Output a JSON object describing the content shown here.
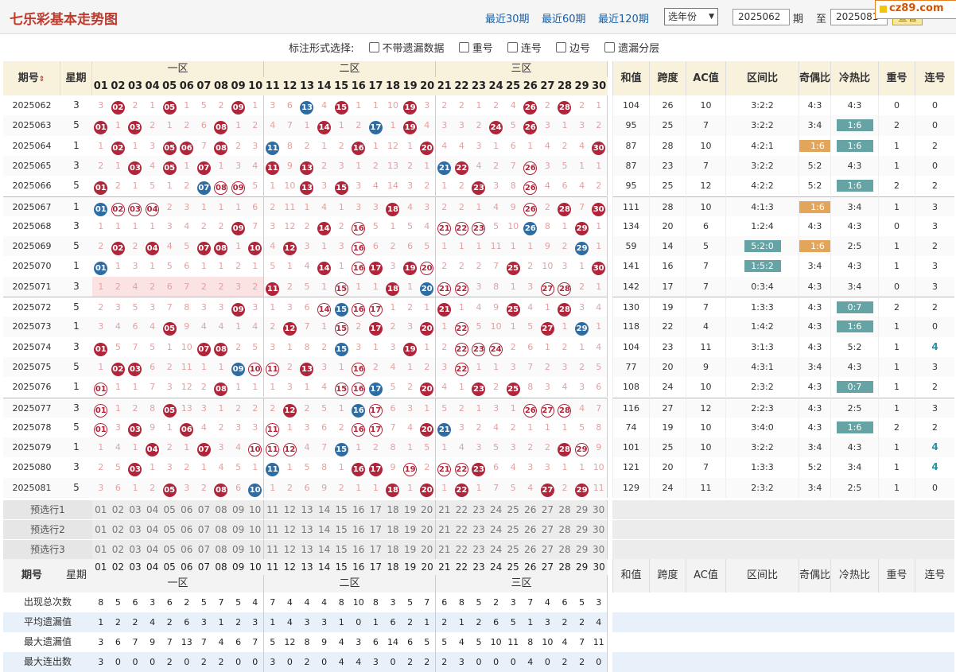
{
  "header": {
    "title": "七乐彩基本走势图",
    "links": [
      "最近30期",
      "最近60期",
      "最近120期"
    ],
    "year_select": "选年份",
    "period_from": "2025062",
    "period_label": "期",
    "to_label": "至",
    "period_to": "2025081",
    "period_label2": "期",
    "view_button": "查看"
  },
  "badge": "cz89.com",
  "options": {
    "label": "标注形式选择:",
    "items": [
      "不带遗漏数据",
      "重号",
      "连号",
      "边号",
      "遗漏分层"
    ]
  },
  "table": {
    "hdr": {
      "period": "期号",
      "sort_icon": "sort-arrows",
      "week": "星期",
      "zones": [
        "一区",
        "二区",
        "三区"
      ],
      "sum": "和值",
      "span": "跨度",
      "ac": "AC值",
      "zone_ratio": "区间比",
      "odd_even": "奇偶比",
      "hot_cold": "冷热比",
      "repeat": "重号",
      "consec": "连号"
    },
    "nums": [
      "01",
      "02",
      "03",
      "04",
      "05",
      "06",
      "07",
      "08",
      "09",
      "10",
      "11",
      "12",
      "13",
      "14",
      "15",
      "16",
      "17",
      "18",
      "19",
      "20",
      "21",
      "22",
      "23",
      "24",
      "25",
      "26",
      "27",
      "28",
      "29",
      "30"
    ],
    "rows": [
      {
        "p": "2025062",
        "w": "3",
        "c": [
          "3",
          "02b",
          "2",
          "1",
          "05b",
          "1",
          "5",
          "2",
          "09b",
          "1",
          "3",
          "6",
          "13s",
          "4",
          "15b",
          "1",
          "1",
          "10",
          "19b",
          "3",
          "2",
          "2",
          "1",
          "2",
          "4",
          "26b",
          "2",
          "28b",
          "2",
          "1"
        ],
        "sum": "104",
        "span": "26",
        "ac": "10",
        "zr": "3:2:2",
        "oe": "4:3",
        "oe_hl": "",
        "hc": "4:3",
        "hc_hl": "",
        "rep": "0",
        "con": "0",
        "con_hl": false
      },
      {
        "p": "2025063",
        "w": "5",
        "c": [
          "01b",
          "1",
          "03b",
          "2",
          "1",
          "2",
          "6",
          "08b",
          "1",
          "2",
          "4",
          "7",
          "1",
          "14b",
          "1",
          "2",
          "17s",
          "1",
          "19b",
          "4",
          "3",
          "3",
          "2",
          "24b",
          "5",
          "26b",
          "3",
          "1",
          "3",
          "2"
        ],
        "sum": "95",
        "span": "25",
        "ac": "7",
        "zr": "3:2:2",
        "oe": "3:4",
        "oe_hl": "",
        "hc": "1:6",
        "hc_hl": "t",
        "rep": "2",
        "con": "0",
        "con_hl": false
      },
      {
        "p": "2025064",
        "w": "1",
        "c": [
          "1",
          "02b",
          "1",
          "3",
          "05b",
          "06b",
          "7",
          "08b",
          "2",
          "3",
          "11s",
          "8",
          "2",
          "1",
          "2",
          "16b",
          "1",
          "12",
          "1",
          "20b",
          "4",
          "4",
          "3",
          "1",
          "6",
          "1",
          "4",
          "2",
          "4",
          "30b"
        ],
        "sum": "87",
        "span": "28",
        "ac": "10",
        "zr": "4:2:1",
        "oe": "1:6",
        "oe_hl": "g",
        "hc": "1:6",
        "hc_hl": "t",
        "rep": "1",
        "con": "2",
        "con_hl": false
      },
      {
        "p": "2025065",
        "w": "3",
        "c": [
          "2",
          "1",
          "03b",
          "4",
          "05b",
          "1",
          "07b",
          "1",
          "3",
          "4",
          "11b",
          "9",
          "13b",
          "2",
          "3",
          "1",
          "2",
          "13",
          "2",
          "1",
          "21s",
          "22b",
          "4",
          "2",
          "7",
          "26o",
          "3",
          "5",
          "1",
          "1"
        ],
        "sum": "87",
        "span": "23",
        "ac": "7",
        "zr": "3:2:2",
        "oe": "5:2",
        "oe_hl": "",
        "hc": "4:3",
        "hc_hl": "",
        "rep": "1",
        "con": "0",
        "con_hl": false
      },
      {
        "p": "2025066",
        "w": "5",
        "c": [
          "01b",
          "2",
          "1",
          "5",
          "1",
          "2",
          "07s",
          "08o",
          "09o",
          "5",
          "1",
          "10",
          "13b",
          "3",
          "15b",
          "3",
          "4",
          "14",
          "3",
          "2",
          "1",
          "2",
          "23b",
          "3",
          "8",
          "26o",
          "4",
          "6",
          "4",
          "2"
        ],
        "sum": "95",
        "span": "25",
        "ac": "12",
        "zr": "4:2:2",
        "oe": "5:2",
        "oe_hl": "",
        "hc": "1:6",
        "hc_hl": "t",
        "rep": "2",
        "con": "2",
        "con_hl": false
      },
      {
        "p": "2025067",
        "w": "1",
        "c": [
          "01s",
          "02o",
          "03o",
          "04o",
          "2",
          "3",
          "1",
          "1",
          "1",
          "6",
          "2",
          "11",
          "1",
          "4",
          "1",
          "3",
          "3",
          "18b",
          "4",
          "3",
          "2",
          "2",
          "1",
          "4",
          "9",
          "26o",
          "2",
          "28b",
          "7",
          "30b"
        ],
        "sum": "111",
        "span": "28",
        "ac": "10",
        "zr": "4:1:3",
        "oe": "1:6",
        "oe_hl": "g",
        "hc": "3:4",
        "hc_hl": "",
        "rep": "1",
        "con": "3",
        "con_hl": false
      },
      {
        "p": "2025068",
        "w": "3",
        "c": [
          "1",
          "1",
          "1",
          "1",
          "3",
          "4",
          "2",
          "2",
          "09b",
          "7",
          "3",
          "12",
          "2",
          "14b",
          "2",
          "16o",
          "5",
          "1",
          "5",
          "4",
          "21o",
          "22o",
          "23o",
          "5",
          "10",
          "26s",
          "8",
          "1",
          "29b",
          "1"
        ],
        "sum": "134",
        "span": "20",
        "ac": "6",
        "zr": "1:2:4",
        "oe": "4:3",
        "oe_hl": "",
        "hc": "4:3",
        "hc_hl": "",
        "rep": "0",
        "con": "3",
        "con_hl": false
      },
      {
        "p": "2025069",
        "w": "5",
        "c": [
          "2",
          "02b",
          "2",
          "04b",
          "4",
          "5",
          "07b",
          "08b",
          "1",
          "10b",
          "4",
          "12b",
          "3",
          "1",
          "3",
          "16o",
          "6",
          "2",
          "6",
          "5",
          "1",
          "1",
          "1",
          "11",
          "1",
          "1",
          "9",
          "2",
          "29s",
          "1"
        ],
        "sum": "59",
        "span": "14",
        "ac": "5",
        "zr": "5:2:0",
        "oe": "1:6",
        "oe_hl": "g",
        "hc": "2:5",
        "hc_hl": "",
        "rep": "1",
        "con": "2",
        "con_hl": false,
        "zr_hl": "t"
      },
      {
        "p": "2025070",
        "w": "1",
        "c": [
          "01s",
          "1",
          "3",
          "1",
          "5",
          "6",
          "1",
          "1",
          "2",
          "1",
          "5",
          "1",
          "4",
          "14b",
          "1",
          "16o",
          "17b",
          "3",
          "19b",
          "20o",
          "2",
          "2",
          "2",
          "7",
          "25b",
          "2",
          "10",
          "3",
          "1",
          "30b"
        ],
        "sum": "141",
        "span": "16",
        "ac": "7",
        "zr": "1:5:2",
        "oe": "3:4",
        "oe_hl": "",
        "hc": "4:3",
        "hc_hl": "",
        "rep": "1",
        "con": "3",
        "con_hl": false,
        "zr_hl": "t"
      },
      {
        "p": "2025071",
        "w": "3",
        "c": [
          "1",
          "2",
          "4",
          "2",
          "6",
          "7",
          "2",
          "2",
          "3",
          "2",
          "11b",
          "2",
          "5",
          "1",
          "15o",
          "1",
          "1",
          "18b",
          "1",
          "20s",
          "21o",
          "22o",
          "3",
          "8",
          "1",
          "3",
          "27o",
          "28o",
          "2",
          "1"
        ],
        "sum": "142",
        "span": "17",
        "ac": "7",
        "zr": "0:3:4",
        "oe": "4:3",
        "oe_hl": "",
        "hc": "3:4",
        "hc_hl": "",
        "rep": "0",
        "con": "3",
        "con_hl": false,
        "pink": true
      },
      {
        "p": "2025072",
        "w": "5",
        "c": [
          "2",
          "3",
          "5",
          "3",
          "7",
          "8",
          "3",
          "3",
          "09b",
          "3",
          "1",
          "3",
          "6",
          "14o",
          "15s",
          "16o",
          "17o",
          "1",
          "2",
          "1",
          "21b",
          "1",
          "4",
          "9",
          "25b",
          "4",
          "1",
          "28b",
          "3",
          "4"
        ],
        "sum": "130",
        "span": "19",
        "ac": "7",
        "zr": "1:3:3",
        "oe": "4:3",
        "oe_hl": "",
        "hc": "0:7",
        "hc_hl": "t",
        "rep": "2",
        "con": "2",
        "con_hl": false
      },
      {
        "p": "2025073",
        "w": "1",
        "c": [
          "3",
          "4",
          "6",
          "4",
          "05b",
          "9",
          "4",
          "4",
          "1",
          "4",
          "2",
          "12b",
          "7",
          "1",
          "15o",
          "2",
          "17b",
          "2",
          "3",
          "20b",
          "1",
          "22o",
          "5",
          "10",
          "1",
          "5",
          "27b",
          "1",
          "29s",
          "1"
        ],
        "sum": "118",
        "span": "22",
        "ac": "4",
        "zr": "1:4:2",
        "oe": "4:3",
        "oe_hl": "",
        "hc": "1:6",
        "hc_hl": "t",
        "rep": "1",
        "con": "0",
        "con_hl": false
      },
      {
        "p": "2025074",
        "w": "3",
        "c": [
          "01b",
          "5",
          "7",
          "5",
          "1",
          "10",
          "07b",
          "08b",
          "2",
          "5",
          "3",
          "1",
          "8",
          "2",
          "15s",
          "3",
          "1",
          "3",
          "19b",
          "1",
          "2",
          "22o",
          "23o",
          "24o",
          "2",
          "6",
          "1",
          "2",
          "1",
          "4"
        ],
        "sum": "104",
        "span": "23",
        "ac": "11",
        "zr": "3:1:3",
        "oe": "4:3",
        "oe_hl": "",
        "hc": "5:2",
        "hc_hl": "",
        "rep": "1",
        "con": "4",
        "con_hl": true
      },
      {
        "p": "2025075",
        "w": "5",
        "c": [
          "1",
          "02b",
          "03b",
          "6",
          "2",
          "11",
          "1",
          "1",
          "09s",
          "10o",
          "11o",
          "2",
          "13b",
          "3",
          "1",
          "16o",
          "2",
          "4",
          "1",
          "2",
          "3",
          "22o",
          "1",
          "1",
          "3",
          "7",
          "2",
          "3",
          "2",
          "5"
        ],
        "sum": "77",
        "span": "20",
        "ac": "9",
        "zr": "4:3:1",
        "oe": "3:4",
        "oe_hl": "",
        "hc": "4:3",
        "hc_hl": "",
        "rep": "1",
        "con": "3",
        "con_hl": false
      },
      {
        "p": "2025076",
        "w": "1",
        "c": [
          "01o",
          "1",
          "1",
          "7",
          "3",
          "12",
          "2",
          "08b",
          "1",
          "1",
          "1",
          "3",
          "1",
          "4",
          "15o",
          "16o",
          "17s",
          "5",
          "2",
          "20b",
          "4",
          "1",
          "23b",
          "2",
          "25b",
          "8",
          "3",
          "4",
          "3",
          "6"
        ],
        "sum": "108",
        "span": "24",
        "ac": "10",
        "zr": "2:3:2",
        "oe": "4:3",
        "oe_hl": "",
        "hc": "0:7",
        "hc_hl": "t",
        "rep": "1",
        "con": "2",
        "con_hl": false
      },
      {
        "p": "2025077",
        "w": "3",
        "c": [
          "01o",
          "1",
          "2",
          "8",
          "05b",
          "13",
          "3",
          "1",
          "2",
          "2",
          "2",
          "12b",
          "2",
          "5",
          "1",
          "16s",
          "17o",
          "6",
          "3",
          "1",
          "5",
          "2",
          "1",
          "3",
          "1",
          "26o",
          "27o",
          "28o",
          "4",
          "7"
        ],
        "sum": "116",
        "span": "27",
        "ac": "12",
        "zr": "2:2:3",
        "oe": "4:3",
        "oe_hl": "",
        "hc": "2:5",
        "hc_hl": "",
        "rep": "1",
        "con": "3",
        "con_hl": false
      },
      {
        "p": "2025078",
        "w": "5",
        "c": [
          "01o",
          "3",
          "03b",
          "9",
          "1",
          "06b",
          "4",
          "2",
          "3",
          "3",
          "11o",
          "1",
          "3",
          "6",
          "2",
          "16o",
          "17o",
          "7",
          "4",
          "20b",
          "21s",
          "3",
          "2",
          "4",
          "2",
          "1",
          "1",
          "1",
          "5",
          "8"
        ],
        "sum": "74",
        "span": "19",
        "ac": "10",
        "zr": "3:4:0",
        "oe": "4:3",
        "oe_hl": "",
        "hc": "1:6",
        "hc_hl": "t",
        "rep": "2",
        "con": "2",
        "con_hl": false
      },
      {
        "p": "2025079",
        "w": "1",
        "c": [
          "1",
          "4",
          "1",
          "04b",
          "2",
          "1",
          "07b",
          "3",
          "4",
          "10o",
          "11o",
          "12o",
          "4",
          "7",
          "15s",
          "1",
          "2",
          "8",
          "1",
          "5",
          "1",
          "4",
          "3",
          "5",
          "3",
          "2",
          "2",
          "28b",
          "29o",
          "9"
        ],
        "sum": "101",
        "span": "25",
        "ac": "10",
        "zr": "3:2:2",
        "oe": "3:4",
        "oe_hl": "",
        "hc": "4:3",
        "hc_hl": "",
        "rep": "1",
        "con": "4",
        "con_hl": true
      },
      {
        "p": "2025080",
        "w": "3",
        "c": [
          "2",
          "5",
          "03b",
          "1",
          "3",
          "2",
          "1",
          "4",
          "5",
          "1",
          "11s",
          "1",
          "5",
          "8",
          "1",
          "16b",
          "17b",
          "9",
          "19o",
          "2",
          "21o",
          "22o",
          "23b",
          "6",
          "4",
          "3",
          "3",
          "1",
          "1",
          "10"
        ],
        "sum": "121",
        "span": "20",
        "ac": "7",
        "zr": "1:3:3",
        "oe": "5:2",
        "oe_hl": "",
        "hc": "3:4",
        "hc_hl": "",
        "rep": "1",
        "con": "4",
        "con_hl": true
      },
      {
        "p": "2025081",
        "w": "5",
        "c": [
          "3",
          "6",
          "1",
          "2",
          "05b",
          "3",
          "2",
          "08b",
          "6",
          "10s",
          "1",
          "2",
          "6",
          "9",
          "2",
          "1",
          "1",
          "18b",
          "1",
          "20b",
          "1",
          "22b",
          "1",
          "7",
          "5",
          "4",
          "27b",
          "2",
          "29b",
          "11"
        ],
        "sum": "129",
        "span": "24",
        "ac": "11",
        "zr": "2:3:2",
        "oe": "3:4",
        "oe_hl": "",
        "hc": "2:5",
        "hc_hl": "",
        "rep": "1",
        "con": "0",
        "con_hl": false
      }
    ],
    "preselect": [
      "预选行1",
      "预选行2",
      "预选行3"
    ],
    "stats": [
      {
        "label": "出现总次数",
        "v": [
          "8",
          "5",
          "6",
          "3",
          "6",
          "2",
          "5",
          "7",
          "5",
          "4",
          "7",
          "4",
          "4",
          "4",
          "8",
          "10",
          "8",
          "3",
          "5",
          "7",
          "6",
          "8",
          "5",
          "2",
          "3",
          "7",
          "4",
          "6",
          "5",
          "3"
        ]
      },
      {
        "label": "平均遗漏值",
        "v": [
          "1",
          "2",
          "2",
          "4",
          "2",
          "6",
          "3",
          "1",
          "2",
          "3",
          "1",
          "4",
          "3",
          "3",
          "1",
          "0",
          "1",
          "6",
          "2",
          "1",
          "2",
          "1",
          "2",
          "6",
          "5",
          "1",
          "3",
          "2",
          "2",
          "4"
        ]
      },
      {
        "label": "最大遗漏值",
        "v": [
          "3",
          "6",
          "7",
          "9",
          "7",
          "13",
          "7",
          "4",
          "6",
          "7",
          "5",
          "12",
          "8",
          "9",
          "4",
          "3",
          "6",
          "14",
          "6",
          "5",
          "5",
          "4",
          "5",
          "10",
          "11",
          "8",
          "10",
          "4",
          "7",
          "11"
        ]
      },
      {
        "label": "最大连出数",
        "v": [
          "3",
          "0",
          "0",
          "0",
          "2",
          "0",
          "2",
          "2",
          "0",
          "0",
          "3",
          "0",
          "2",
          "0",
          "4",
          "4",
          "3",
          "0",
          "2",
          "2",
          "2",
          "3",
          "0",
          "0",
          "0",
          "4",
          "0",
          "2",
          "2",
          "0"
        ]
      }
    ]
  },
  "colors": {
    "red_ball": "#b0253a",
    "blue_ball": "#2e6da4",
    "header_bg": "#f8f1dc",
    "teal_hl": "#66a3a4",
    "gold_hl": "#e2a65a"
  }
}
